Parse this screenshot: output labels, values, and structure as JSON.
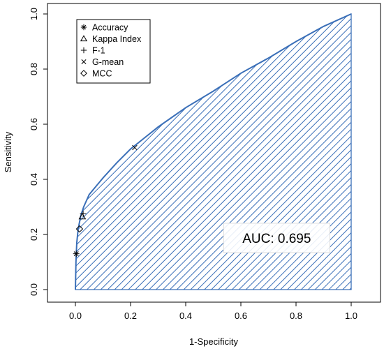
{
  "chart_data": {
    "type": "line",
    "title": "",
    "xlabel": "1-Specificity",
    "ylabel": "Sensitivity",
    "xlim": [
      0,
      1
    ],
    "ylim": [
      0,
      1
    ],
    "xticks": [
      "0.0",
      "0.2",
      "0.4",
      "0.6",
      "0.8",
      "1.0"
    ],
    "yticks": [
      "0.0",
      "0.2",
      "0.4",
      "0.6",
      "0.8",
      "1.0"
    ],
    "grid": false,
    "legend_position": "top-left",
    "series": [
      {
        "color": "#3a6fb8",
        "fill": "hatched",
        "x": [
          0,
          0.002,
          0.005,
          0.01,
          0.02,
          0.03,
          0.05,
          0.075,
          0.1,
          0.15,
          0.2,
          0.25,
          0.3,
          0.35,
          0.4,
          0.5,
          0.6,
          0.7,
          0.8,
          0.9,
          1.0
        ],
        "y": [
          0,
          0.1,
          0.17,
          0.22,
          0.27,
          0.3,
          0.345,
          0.375,
          0.405,
          0.46,
          0.51,
          0.55,
          0.59,
          0.625,
          0.66,
          0.72,
          0.785,
          0.84,
          0.9,
          0.955,
          1.0
        ]
      }
    ],
    "markers": [
      {
        "name": "Accuracy",
        "symbol": "asterisk",
        "x": 0.003,
        "y": 0.13
      },
      {
        "name": "Kappa Index",
        "symbol": "triangle",
        "x": 0.025,
        "y": 0.265
      },
      {
        "name": "F-1",
        "symbol": "plus",
        "x": 0.028,
        "y": 0.275
      },
      {
        "name": "G-mean",
        "symbol": "cross",
        "x": 0.215,
        "y": 0.515
      },
      {
        "name": "MCC",
        "symbol": "diamond",
        "x": 0.015,
        "y": 0.22
      }
    ],
    "annotations": [
      {
        "text": "AUC: 0.695",
        "x": 0.73,
        "y": 0.19
      }
    ]
  }
}
